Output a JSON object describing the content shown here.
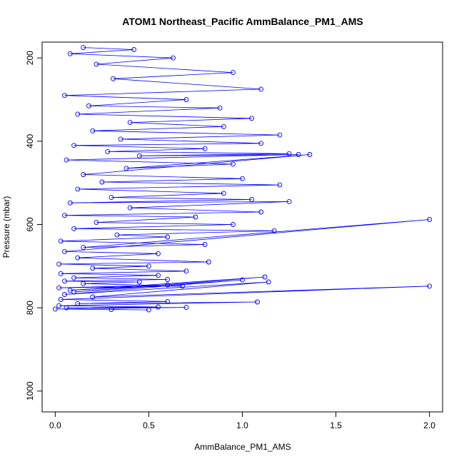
{
  "chart_data": {
    "type": "scatter",
    "title": "ATOM1 Northeast_Pacific AmmBalance_PM1_AMS",
    "xlabel": "AmmBalance_PM1_AMS",
    "ylabel": "Pressure (mbar)",
    "xlim": [
      -0.07,
      2.07
    ],
    "ylim": [
      1050,
      162
    ],
    "y_reversed": true,
    "grid": false,
    "legend": "none",
    "x_ticks": [
      {
        "value": 0.0,
        "label": "0.0"
      },
      {
        "value": 0.5,
        "label": "0.5"
      },
      {
        "value": 1.0,
        "label": "1.0"
      },
      {
        "value": 1.5,
        "label": "1.5"
      },
      {
        "value": 2.0,
        "label": "2.0"
      }
    ],
    "y_ticks": [
      {
        "value": 200,
        "label": "200"
      },
      {
        "value": 400,
        "label": "400"
      },
      {
        "value": 600,
        "label": "600"
      },
      {
        "value": 800,
        "label": "800"
      },
      {
        "value": 1000,
        "label": "1000"
      }
    ],
    "series": [
      {
        "color": "#0000ff",
        "marker": "open-circle",
        "connected": true,
        "x": [
          0.15,
          0.42,
          0.08,
          0.63,
          0.22,
          0.95,
          0.31,
          1.1,
          0.05,
          0.7,
          0.18,
          0.88,
          0.12,
          1.05,
          0.4,
          0.9,
          0.2,
          1.2,
          0.35,
          1.1,
          0.1,
          0.8,
          0.28,
          1.25,
          0.45,
          1.3,
          0.06,
          0.95,
          0.38,
          1.36,
          0.15,
          1.0,
          0.25,
          1.2,
          0.12,
          0.9,
          0.3,
          1.05,
          0.08,
          1.25,
          0.4,
          1.1,
          0.05,
          0.75,
          0.22,
          0.95,
          0.1,
          1.17,
          0.33,
          0.6,
          0.03,
          0.8,
          0.15,
          2.0,
          0.05,
          0.55,
          0.12,
          0.82,
          0.02,
          0.5,
          0.2,
          0.7,
          0.03,
          0.55,
          0.1,
          0.6,
          0.05,
          0.45,
          0.15,
          0.68,
          0.02,
          0.6,
          0.08,
          1.12,
          0.1,
          1.0,
          0.05,
          1.14,
          0.2,
          2.0,
          0.03,
          0.6,
          0.12,
          1.08,
          0.02,
          0.55,
          0.06,
          0.7,
          0.0,
          0.5,
          0.3
        ],
        "y": [
          175,
          180,
          190,
          200,
          215,
          235,
          250,
          275,
          290,
          300,
          315,
          320,
          335,
          345,
          355,
          365,
          375,
          385,
          395,
          405,
          410,
          418,
          425,
          430,
          435,
          432,
          445,
          455,
          465,
          432,
          480,
          490,
          498,
          505,
          515,
          525,
          535,
          540,
          548,
          545,
          560,
          570,
          578,
          582,
          595,
          600,
          610,
          615,
          625,
          630,
          640,
          648,
          655,
          588,
          665,
          670,
          680,
          690,
          695,
          700,
          705,
          712,
          718,
          722,
          728,
          732,
          736,
          738,
          742,
          748,
          752,
          745,
          758,
          726,
          762,
          733,
          768,
          738,
          774,
          748,
          780,
          785,
          790,
          786,
          795,
          798,
          800,
          799,
          803,
          805,
          804
        ]
      }
    ]
  }
}
